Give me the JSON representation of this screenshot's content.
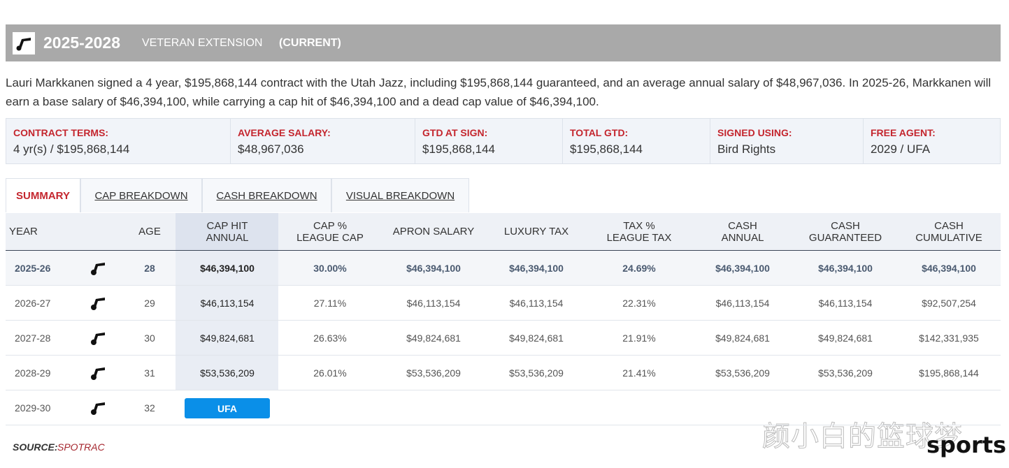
{
  "header": {
    "years": "2025-2028",
    "type": "VETERAN EXTENSION",
    "status": "(CURRENT)"
  },
  "description": "Lauri Markkanen signed a 4 year, $195,868,144 contract with the Utah Jazz, including $195,868,144 guaranteed, and an average annual salary of $48,967,036. In 2025-26, Markkanen will earn a base salary of $46,394,100, while carrying a cap hit of $46,394,100 and a dead cap value of $46,394,100.",
  "terms": [
    {
      "label": "CONTRACT TERMS:",
      "value": "4 yr(s) / $195,868,144"
    },
    {
      "label": "AVERAGE SALARY:",
      "value": "$48,967,036"
    },
    {
      "label": "GTD AT SIGN:",
      "value": "$195,868,144"
    },
    {
      "label": "TOTAL GTD:",
      "value": "$195,868,144"
    },
    {
      "label": "SIGNED USING:",
      "value": "Bird Rights"
    },
    {
      "label": "FREE AGENT:",
      "value": "2029 / UFA"
    }
  ],
  "tabs": [
    "SUMMARY",
    "CAP BREAKDOWN",
    "CASH BREAKDOWN",
    "VISUAL BREAKDOWN"
  ],
  "table": {
    "columns": [
      [
        "YEAR"
      ],
      [
        "AGE"
      ],
      [
        "CAP HIT",
        "ANNUAL"
      ],
      [
        "CAP %",
        "LEAGUE CAP"
      ],
      [
        "APRON SALARY"
      ],
      [
        "LUXURY TAX"
      ],
      [
        "TAX %",
        "LEAGUE TAX"
      ],
      [
        "CASH",
        "ANNUAL"
      ],
      [
        "CASH",
        "GUARANTEED"
      ],
      [
        "CASH",
        "CUMULATIVE"
      ]
    ],
    "rows": [
      [
        "2025-26",
        "28",
        "$46,394,100",
        "30.00%",
        "$46,394,100",
        "$46,394,100",
        "24.69%",
        "$46,394,100",
        "$46,394,100",
        "$46,394,100"
      ],
      [
        "2026-27",
        "29",
        "$46,113,154",
        "27.11%",
        "$46,113,154",
        "$46,113,154",
        "22.31%",
        "$46,113,154",
        "$46,113,154",
        "$92,507,254"
      ],
      [
        "2027-28",
        "30",
        "$49,824,681",
        "26.63%",
        "$49,824,681",
        "$49,824,681",
        "21.91%",
        "$49,824,681",
        "$49,824,681",
        "$142,331,935"
      ],
      [
        "2028-29",
        "31",
        "$53,536,209",
        "26.01%",
        "$53,536,209",
        "$53,536,209",
        "21.41%",
        "$53,536,209",
        "$53,536,209",
        "$195,868,144"
      ]
    ],
    "free_agent_row": {
      "year": "2029-30",
      "age": "32",
      "badge": "UFA"
    }
  },
  "source": {
    "label": "SOURCE:",
    "value": "SPOTRAC"
  },
  "watermark": {
    "text": "颜小白的篮球梦",
    "brand": "sports"
  }
}
